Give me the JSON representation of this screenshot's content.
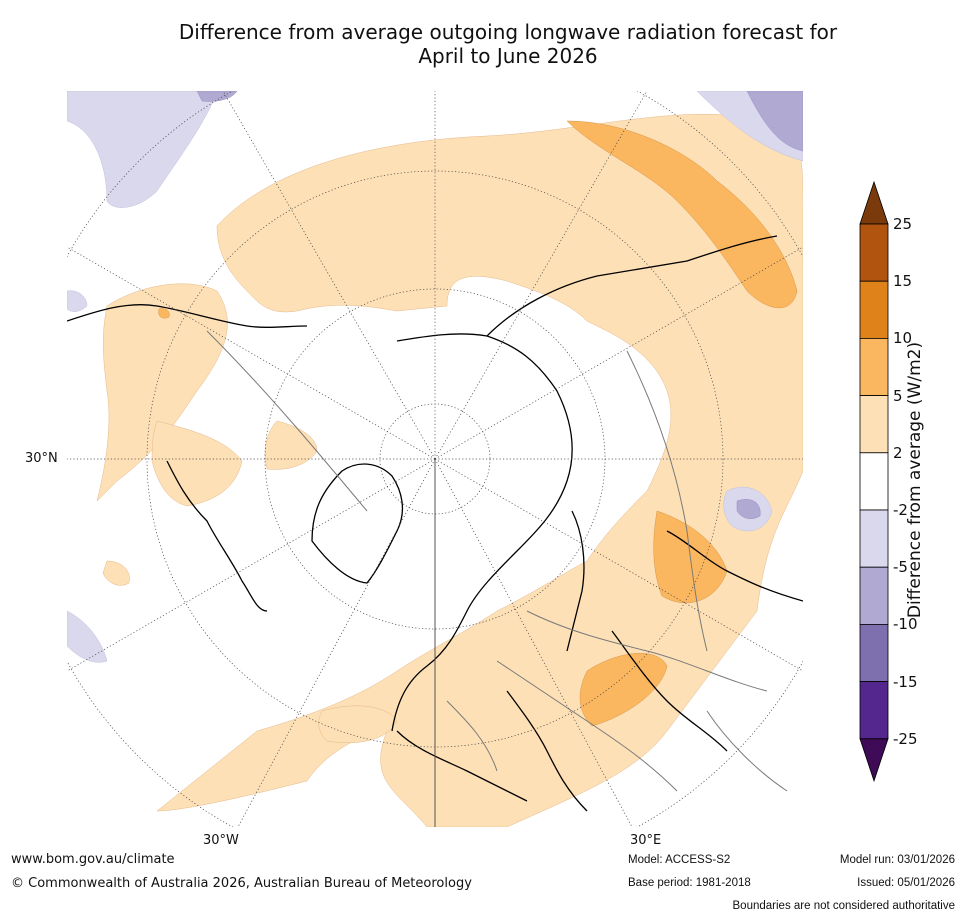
{
  "title_line1": "Difference from average outgoing longwave radiation forecast for",
  "title_line2": "April to June 2026",
  "lat_labels": [
    "30°N"
  ],
  "lon_labels": [
    "30°W",
    "30°E"
  ],
  "colorbar": {
    "label": "Difference from average (W/m2)",
    "ticks": [
      "25",
      "15",
      "10",
      "5",
      "2",
      "-2",
      "-5",
      "-10",
      "-15",
      "-25"
    ],
    "colors": [
      "#7a3a0b",
      "#b0540f",
      "#e0821a",
      "#fbb660",
      "#fde0b6",
      "#ffffff",
      "#d9d8ec",
      "#b0a9d2",
      "#7e6fae",
      "#54278f",
      "#3f0b57"
    ]
  },
  "footer": {
    "url": "www.bom.gov.au/climate",
    "copyright": "© Commonwealth of Australia 2026, Australian Bureau of Meteorology",
    "model": "Model: ACCESS-S2",
    "base_period": "Base period: 1981-2018",
    "model_run": "Model run: 03/01/2026",
    "issued": "Issued: 05/01/2026",
    "boundaries": "Boundaries are not considered authoritative"
  }
}
